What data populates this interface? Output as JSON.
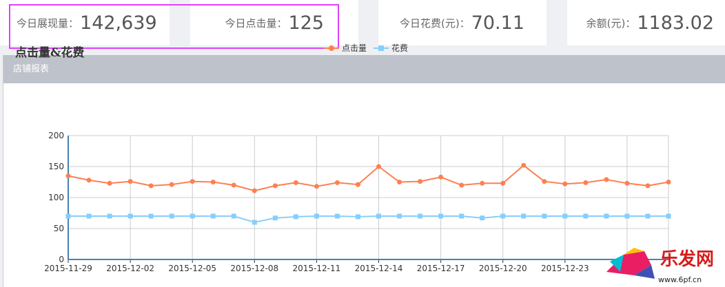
{
  "stats": [
    {
      "label": "今日展现量：",
      "value": "142,639"
    },
    {
      "label": "今日点击量：",
      "value": "125"
    },
    {
      "label": "今日花费(元)：",
      "value": "70.11"
    },
    {
      "label": "余额(元)：",
      "value": "1183.02"
    }
  ],
  "panel": {
    "title": "店铺报表"
  },
  "watermark": {
    "text": "乐发网",
    "url": "www.6pf.cn"
  },
  "chart_data": {
    "type": "line",
    "title": "点击量&花费",
    "legend_position": "top",
    "grid": true,
    "ylim": [
      0,
      200
    ],
    "yticks": [
      0,
      50,
      100,
      150,
      200
    ],
    "x": [
      "2015-11-29",
      "2015-11-30",
      "2015-12-01",
      "2015-12-02",
      "2015-12-03",
      "2015-12-04",
      "2015-12-05",
      "2015-12-06",
      "2015-12-07",
      "2015-12-08",
      "2015-12-09",
      "2015-12-10",
      "2015-12-11",
      "2015-12-12",
      "2015-12-13",
      "2015-12-14",
      "2015-12-15",
      "2015-12-16",
      "2015-12-17",
      "2015-12-18",
      "2015-12-19",
      "2015-12-20",
      "2015-12-21",
      "2015-12-22",
      "2015-12-23",
      "2015-12-24",
      "2015-12-25",
      "2015-12-26",
      "2015-12-27",
      "2015-12-28"
    ],
    "xtick_labels": [
      "2015-11-29",
      "2015-12-02",
      "2015-12-05",
      "2015-12-08",
      "2015-12-11",
      "2015-12-14",
      "2015-12-17",
      "2015-12-20",
      "2015-12-23"
    ],
    "series": [
      {
        "name": "点击量",
        "color": "#ff7f50",
        "marker": "circle",
        "values": [
          135,
          128,
          123,
          126,
          119,
          121,
          126,
          125,
          120,
          111,
          119,
          124,
          118,
          124,
          121,
          150,
          125,
          126,
          133,
          120,
          123,
          123,
          152,
          126,
          122,
          124,
          129,
          123,
          119,
          125
        ]
      },
      {
        "name": "花费",
        "color": "#87cefa",
        "marker": "square",
        "values": [
          70,
          70,
          70,
          70,
          70,
          70,
          70,
          70,
          70,
          60,
          67,
          69,
          70,
          70,
          69,
          70,
          70,
          70,
          70,
          70,
          67,
          70,
          70,
          70,
          70,
          70,
          70,
          70,
          70,
          70
        ]
      }
    ]
  }
}
